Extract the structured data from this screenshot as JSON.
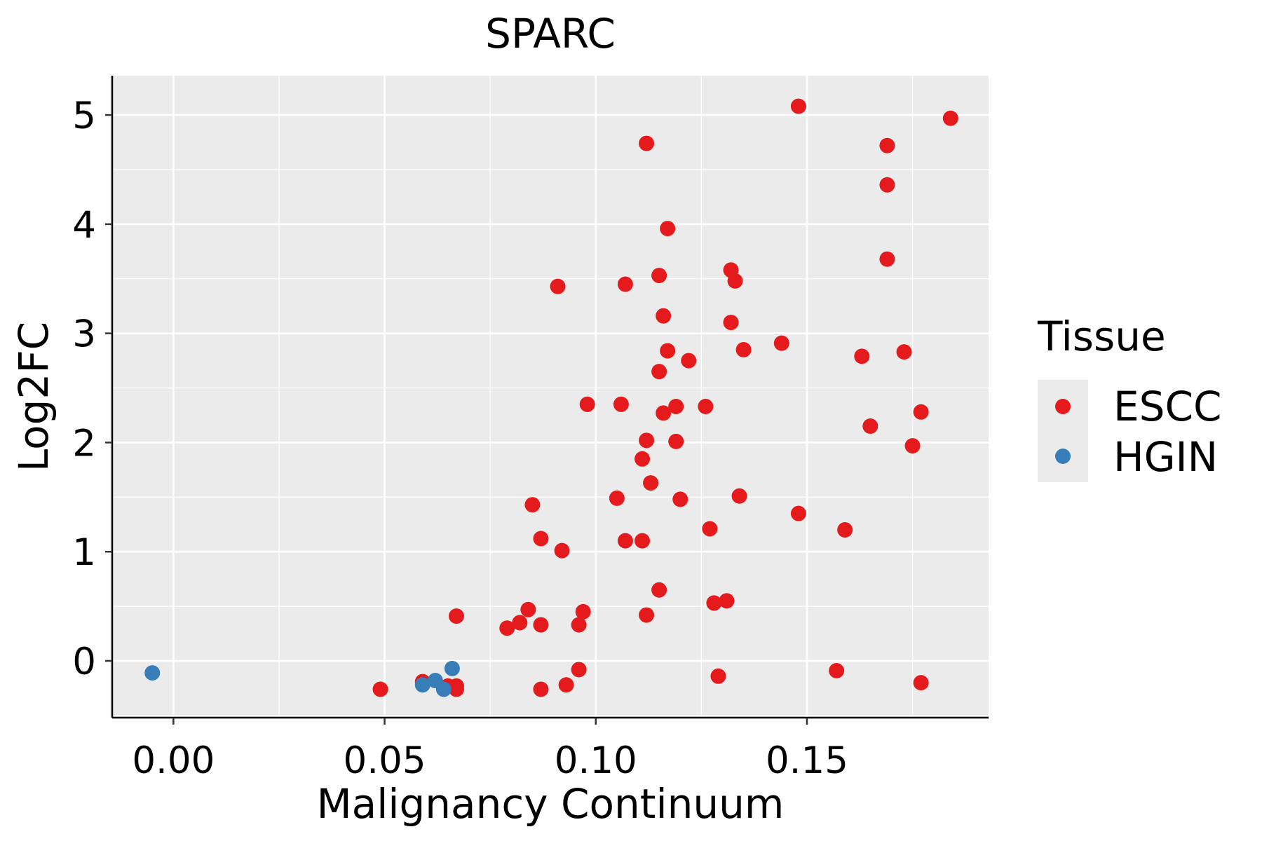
{
  "chart_data": {
    "type": "scatter",
    "title": "SPARC",
    "xlabel": "Malignancy Continuum",
    "ylabel": "Log2FC",
    "xlim": [
      -0.0145,
      0.193
    ],
    "ylim": [
      -0.52,
      5.36
    ],
    "xticks": [
      0.0,
      0.05,
      0.1,
      0.15
    ],
    "xtick_labels": [
      "0.00",
      "0.05",
      "0.10",
      "0.15"
    ],
    "yticks": [
      0,
      1,
      2,
      3,
      4,
      5
    ],
    "ytick_labels": [
      "0",
      "1",
      "2",
      "3",
      "4",
      "5"
    ],
    "grid": true,
    "background": "#EBEBEB",
    "legend": {
      "title": "Tissue",
      "placement": "right",
      "entries": [
        {
          "name": "ESCC",
          "color": "#E41A1C"
        },
        {
          "name": "HGIN",
          "color": "#377EB8"
        }
      ]
    },
    "series": [
      {
        "name": "ESCC",
        "color": "#E41A1C",
        "points": [
          [
            0.148,
            5.08
          ],
          [
            0.184,
            4.97
          ],
          [
            0.112,
            4.74
          ],
          [
            0.169,
            4.72
          ],
          [
            0.169,
            4.36
          ],
          [
            0.117,
            3.96
          ],
          [
            0.169,
            3.68
          ],
          [
            0.132,
            3.58
          ],
          [
            0.115,
            3.53
          ],
          [
            0.133,
            3.48
          ],
          [
            0.107,
            3.45
          ],
          [
            0.091,
            3.43
          ],
          [
            0.116,
            3.16
          ],
          [
            0.132,
            3.1
          ],
          [
            0.144,
            2.91
          ],
          [
            0.135,
            2.85
          ],
          [
            0.117,
            2.84
          ],
          [
            0.173,
            2.83
          ],
          [
            0.163,
            2.79
          ],
          [
            0.122,
            2.75
          ],
          [
            0.115,
            2.65
          ],
          [
            0.098,
            2.35
          ],
          [
            0.106,
            2.35
          ],
          [
            0.119,
            2.33
          ],
          [
            0.126,
            2.33
          ],
          [
            0.177,
            2.28
          ],
          [
            0.116,
            2.27
          ],
          [
            0.165,
            2.15
          ],
          [
            0.112,
            2.02
          ],
          [
            0.119,
            2.01
          ],
          [
            0.175,
            1.97
          ],
          [
            0.111,
            1.85
          ],
          [
            0.113,
            1.63
          ],
          [
            0.105,
            1.49
          ],
          [
            0.12,
            1.48
          ],
          [
            0.134,
            1.51
          ],
          [
            0.085,
            1.43
          ],
          [
            0.148,
            1.35
          ],
          [
            0.127,
            1.21
          ],
          [
            0.159,
            1.2
          ],
          [
            0.087,
            1.12
          ],
          [
            0.107,
            1.1
          ],
          [
            0.111,
            1.1
          ],
          [
            0.092,
            1.01
          ],
          [
            0.115,
            0.65
          ],
          [
            0.128,
            0.53
          ],
          [
            0.131,
            0.55
          ],
          [
            0.084,
            0.47
          ],
          [
            0.097,
            0.45
          ],
          [
            0.067,
            0.41
          ],
          [
            0.112,
            0.42
          ],
          [
            0.082,
            0.35
          ],
          [
            0.079,
            0.3
          ],
          [
            0.087,
            0.33
          ],
          [
            0.096,
            0.33
          ],
          [
            0.157,
            -0.09
          ],
          [
            0.096,
            -0.08
          ],
          [
            0.129,
            -0.14
          ],
          [
            0.177,
            -0.2
          ],
          [
            0.059,
            -0.19
          ],
          [
            0.093,
            -0.22
          ],
          [
            0.065,
            -0.23
          ],
          [
            0.067,
            -0.23
          ],
          [
            0.049,
            -0.26
          ],
          [
            0.067,
            -0.26
          ],
          [
            0.087,
            -0.26
          ]
        ]
      },
      {
        "name": "HGIN",
        "color": "#377EB8",
        "points": [
          [
            -0.005,
            -0.11
          ],
          [
            0.066,
            -0.07
          ],
          [
            0.062,
            -0.18
          ],
          [
            0.059,
            -0.22
          ],
          [
            0.064,
            -0.26
          ]
        ]
      }
    ]
  }
}
